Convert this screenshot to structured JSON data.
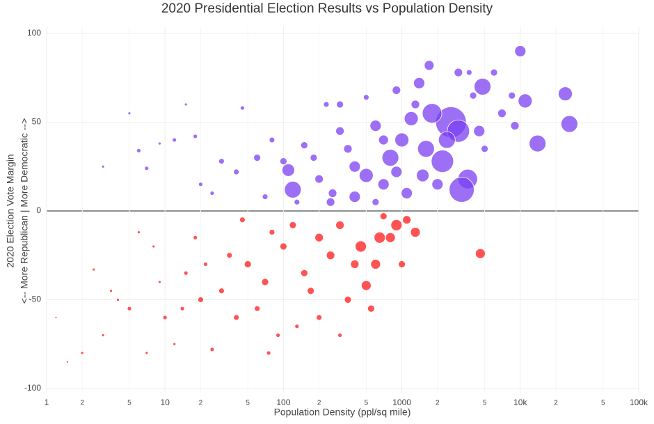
{
  "chart_data": {
    "type": "scatter",
    "title": "2020 Presidential Election Results vs Population Density",
    "x_label": "Population Density (ppl/sq mile)",
    "y_label": [
      "2020 Election Vote Margin",
      "<-- More Republican | More Democratic -->"
    ],
    "xlog": true,
    "grid": true,
    "xlim": [
      1,
      100000
    ],
    "ylim": [
      -100,
      100
    ],
    "xticks": [
      1,
      2,
      5,
      10,
      {
        "value": 20,
        "label": "2"
      },
      {
        "value": 50,
        "label": "5"
      },
      100,
      {
        "value": 200,
        "label": "2"
      },
      {
        "value": 500,
        "label": "5"
      },
      1000,
      {
        "value": 2000,
        "label": "2"
      },
      {
        "value": 5000,
        "label": "5"
      },
      {
        "value": 10000,
        "label": "10k"
      },
      {
        "value": 20000,
        "label": "2"
      },
      {
        "value": 50000,
        "label": "5"
      },
      {
        "value": 100000,
        "label": "100k"
      }
    ],
    "yticks": [
      -100,
      -50,
      0,
      50,
      100
    ],
    "series": [
      {
        "color": "#7b3ff2",
        "x": [
          10000,
          2600,
          3000,
          1800,
          1200,
          4800,
          26000,
          24000,
          14000,
          11000,
          3600,
          3200,
          2200,
          1600,
          800,
          500,
          120,
          110,
          400,
          250,
          700,
          900,
          1400,
          1700,
          900,
          600,
          300,
          200,
          150,
          60,
          40,
          30,
          20,
          12,
          7,
          6,
          15,
          5,
          300,
          230,
          3000,
          3700,
          6000,
          4000,
          7000,
          8500,
          5000,
          400,
          1000,
          1100,
          2000,
          600,
          180,
          260,
          350,
          80,
          70,
          100,
          1300,
          500,
          700,
          1500,
          2400,
          4500,
          9000,
          18,
          9,
          3,
          45,
          25,
          130
        ],
        "values": [
          90,
          50,
          45,
          55,
          52,
          70,
          49,
          66,
          38,
          62,
          18,
          12,
          28,
          35,
          30,
          20,
          12,
          23,
          8,
          5,
          15,
          22,
          72,
          82,
          68,
          48,
          45,
          18,
          37,
          30,
          22,
          28,
          15,
          40,
          24,
          34,
          60,
          55,
          60,
          60,
          78,
          78,
          78,
          65,
          55,
          65,
          35,
          25,
          40,
          10,
          15,
          5,
          30,
          10,
          35,
          40,
          8,
          28,
          60,
          64,
          40,
          20,
          40,
          45,
          48,
          42,
          38,
          25,
          58,
          10,
          5
        ],
        "sizes": [
          16,
          44,
          32,
          28,
          20,
          24,
          24,
          20,
          24,
          20,
          28,
          36,
          32,
          24,
          24,
          20,
          24,
          18,
          16,
          12,
          16,
          16,
          16,
          14,
          12,
          16,
          12,
          12,
          10,
          10,
          8,
          8,
          6,
          6,
          6,
          6,
          4,
          4,
          10,
          8,
          12,
          8,
          10,
          10,
          12,
          10,
          10,
          16,
          20,
          16,
          16,
          10,
          10,
          12,
          12,
          8,
          8,
          10,
          12,
          8,
          14,
          18,
          24,
          16,
          12,
          6,
          4,
          4,
          6,
          6,
          8
        ]
      },
      {
        "color": "#ff1a1a",
        "x": [
          4600,
          1300,
          800,
          600,
          500,
          400,
          250,
          200,
          150,
          100,
          70,
          50,
          30,
          20,
          15,
          10,
          5,
          3,
          2,
          1.5,
          1.2,
          40,
          60,
          80,
          120,
          300,
          700,
          900,
          1100,
          350,
          200,
          90,
          25,
          12,
          7,
          4,
          2.5,
          8,
          6,
          3.5,
          170,
          450,
          1000,
          650,
          550,
          35,
          18,
          45,
          22,
          14,
          9,
          130,
          75,
          300
        ],
        "values": [
          -24,
          -12,
          -15,
          -30,
          -42,
          -30,
          -25,
          -15,
          -35,
          -20,
          -40,
          -30,
          -45,
          -50,
          -35,
          -60,
          -55,
          -70,
          -80,
          -85,
          -60,
          -60,
          -55,
          -12,
          -8,
          -8,
          -3,
          -8,
          -5,
          -50,
          -60,
          -70,
          -78,
          -75,
          -80,
          -50,
          -33,
          -20,
          -12,
          -45,
          -45,
          -20,
          -30,
          -15,
          -55,
          -25,
          -15,
          -5,
          -30,
          -55,
          -40,
          -65,
          -80,
          -70
        ],
        "sizes": [
          14,
          14,
          14,
          14,
          14,
          12,
          12,
          12,
          10,
          10,
          10,
          10,
          8,
          8,
          6,
          6,
          6,
          4,
          4,
          3,
          3,
          8,
          8,
          8,
          10,
          12,
          10,
          16,
          12,
          10,
          8,
          6,
          6,
          4,
          4,
          4,
          4,
          4,
          4,
          4,
          10,
          16,
          10,
          16,
          10,
          8,
          6,
          8,
          6,
          6,
          4,
          6,
          6,
          6
        ]
      }
    ]
  }
}
